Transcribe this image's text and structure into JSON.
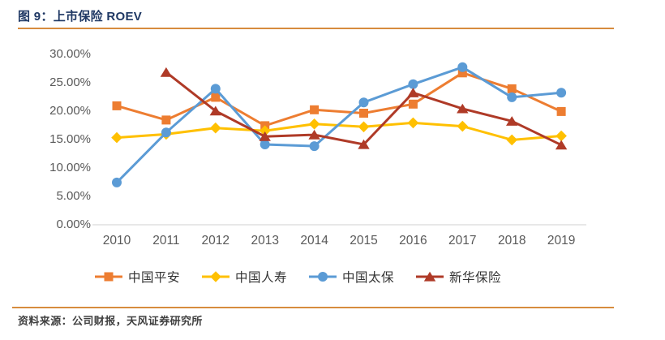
{
  "header": {
    "title": "图 9：上市保险 ROEV"
  },
  "chart_data": {
    "type": "line",
    "title": "上市保险 ROEV",
    "categories": [
      "2010",
      "2011",
      "2012",
      "2013",
      "2014",
      "2015",
      "2016",
      "2017",
      "2018",
      "2019"
    ],
    "y_ticks": [
      "30.00%",
      "25.00%",
      "20.00%",
      "15.00%",
      "10.00%",
      "5.00%",
      "0.00%"
    ],
    "ylim": [
      0,
      30
    ],
    "y_step": 5,
    "unit": "%",
    "grid": false,
    "legend_position": "bottom",
    "series": [
      {
        "name": "中国平安",
        "marker": "square",
        "color": "#ED7D31",
        "values": [
          20.9,
          18.4,
          22.4,
          17.4,
          20.2,
          19.6,
          21.2,
          26.7,
          23.9,
          19.9
        ]
      },
      {
        "name": "中国人寿",
        "marker": "diamond",
        "color": "#FFC000",
        "values": [
          15.3,
          15.9,
          17.0,
          16.5,
          17.7,
          17.2,
          17.9,
          17.3,
          14.9,
          15.6
        ]
      },
      {
        "name": "中国太保",
        "marker": "circle",
        "color": "#5B9BD5",
        "values": [
          7.4,
          16.2,
          23.9,
          14.1,
          13.8,
          21.5,
          24.7,
          27.7,
          22.4,
          23.2
        ]
      },
      {
        "name": "新华保险",
        "marker": "triangle",
        "color": "#AF3A27",
        "values": [
          null,
          26.8,
          20.0,
          15.5,
          15.8,
          14.1,
          23.2,
          20.4,
          18.2,
          14.0
        ]
      }
    ]
  },
  "footer": {
    "source": "资料来源：公司财报，天风证券研究所"
  },
  "colors": {
    "accent_rule": "#D78C3E",
    "title_text": "#1F3864",
    "axis_text": "#595959",
    "axis_line": "#D9D9D9",
    "legend_text": "#333333",
    "source_text": "#404040"
  }
}
